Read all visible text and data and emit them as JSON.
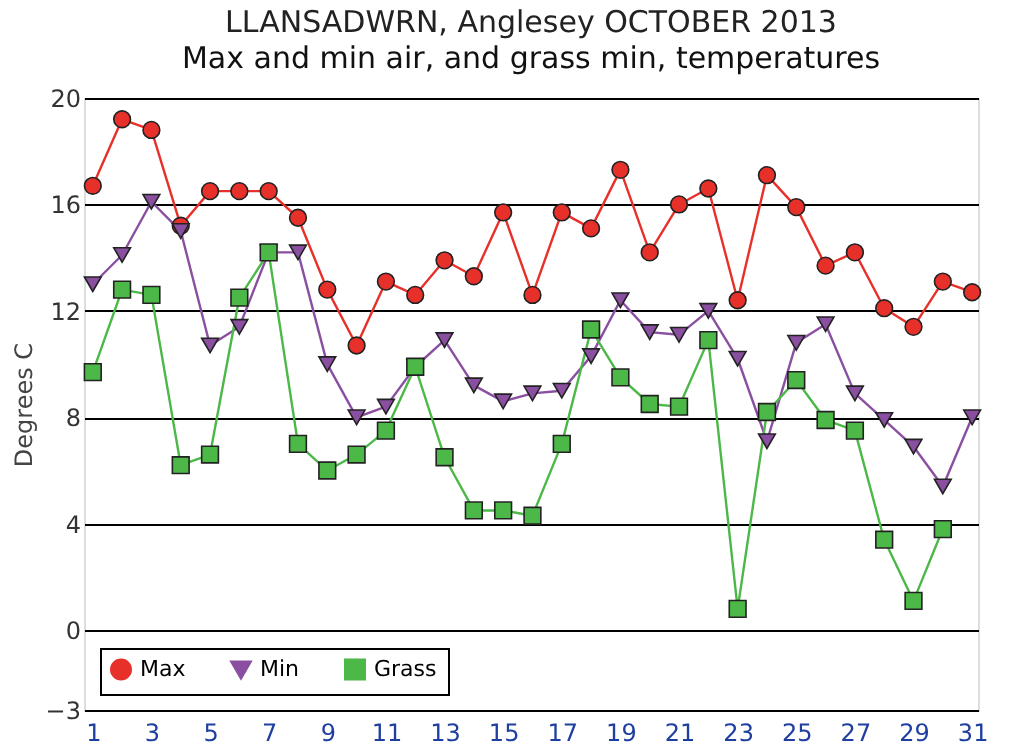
{
  "chart_data": {
    "type": "line",
    "title": "LLANSADWRN, Anglesey OCTOBER 2013",
    "subtitle": "Max and min air, and grass min, temperatures",
    "ylabel": "Degrees C",
    "x": [
      1,
      2,
      3,
      4,
      5,
      6,
      7,
      8,
      9,
      10,
      11,
      12,
      13,
      14,
      15,
      16,
      17,
      18,
      19,
      20,
      21,
      22,
      23,
      24,
      25,
      26,
      27,
      28,
      29,
      30,
      31
    ],
    "xlim": [
      0.7,
      31.2
    ],
    "xticks": [
      1,
      3,
      5,
      7,
      9,
      11,
      13,
      15,
      17,
      19,
      21,
      23,
      25,
      27,
      29,
      31
    ],
    "ylim": [
      -3,
      20
    ],
    "yticks": [
      -3,
      0,
      4,
      8,
      12,
      16,
      20
    ],
    "grid": "y",
    "legend": "bottom left",
    "series": [
      {
        "name": "Max",
        "color": "#e8302a",
        "marker": "circle",
        "values": [
          16.7,
          19.2,
          18.8,
          15.2,
          16.5,
          16.5,
          16.5,
          15.5,
          12.8,
          10.7,
          13.1,
          12.6,
          13.9,
          13.3,
          15.7,
          12.6,
          15.7,
          15.1,
          17.3,
          14.2,
          16.0,
          16.6,
          12.4,
          17.1,
          15.9,
          13.7,
          14.2,
          12.1,
          11.4,
          13.1,
          12.7
        ]
      },
      {
        "name": "Min",
        "color": "#8a4fa0",
        "marker": "triangle-down",
        "values": [
          13.0,
          14.1,
          16.1,
          15.0,
          10.7,
          11.4,
          14.2,
          14.2,
          10.0,
          8.0,
          8.4,
          9.9,
          10.9,
          9.2,
          8.6,
          8.9,
          9.0,
          10.3,
          12.4,
          11.2,
          11.1,
          12.0,
          10.2,
          7.1,
          10.8,
          11.5,
          8.9,
          7.9,
          6.9,
          5.4,
          8.0
        ]
      },
      {
        "name": "Grass",
        "color": "#4cb848",
        "marker": "square",
        "values": [
          9.7,
          12.8,
          12.6,
          6.2,
          6.6,
          12.5,
          14.2,
          7.0,
          6.0,
          6.6,
          7.5,
          9.9,
          6.5,
          4.5,
          4.5,
          4.3,
          7.0,
          11.3,
          9.5,
          8.5,
          8.4,
          10.9,
          0.8,
          8.2,
          9.4,
          7.9,
          7.5,
          3.4,
          1.1,
          3.8,
          null
        ]
      }
    ]
  }
}
